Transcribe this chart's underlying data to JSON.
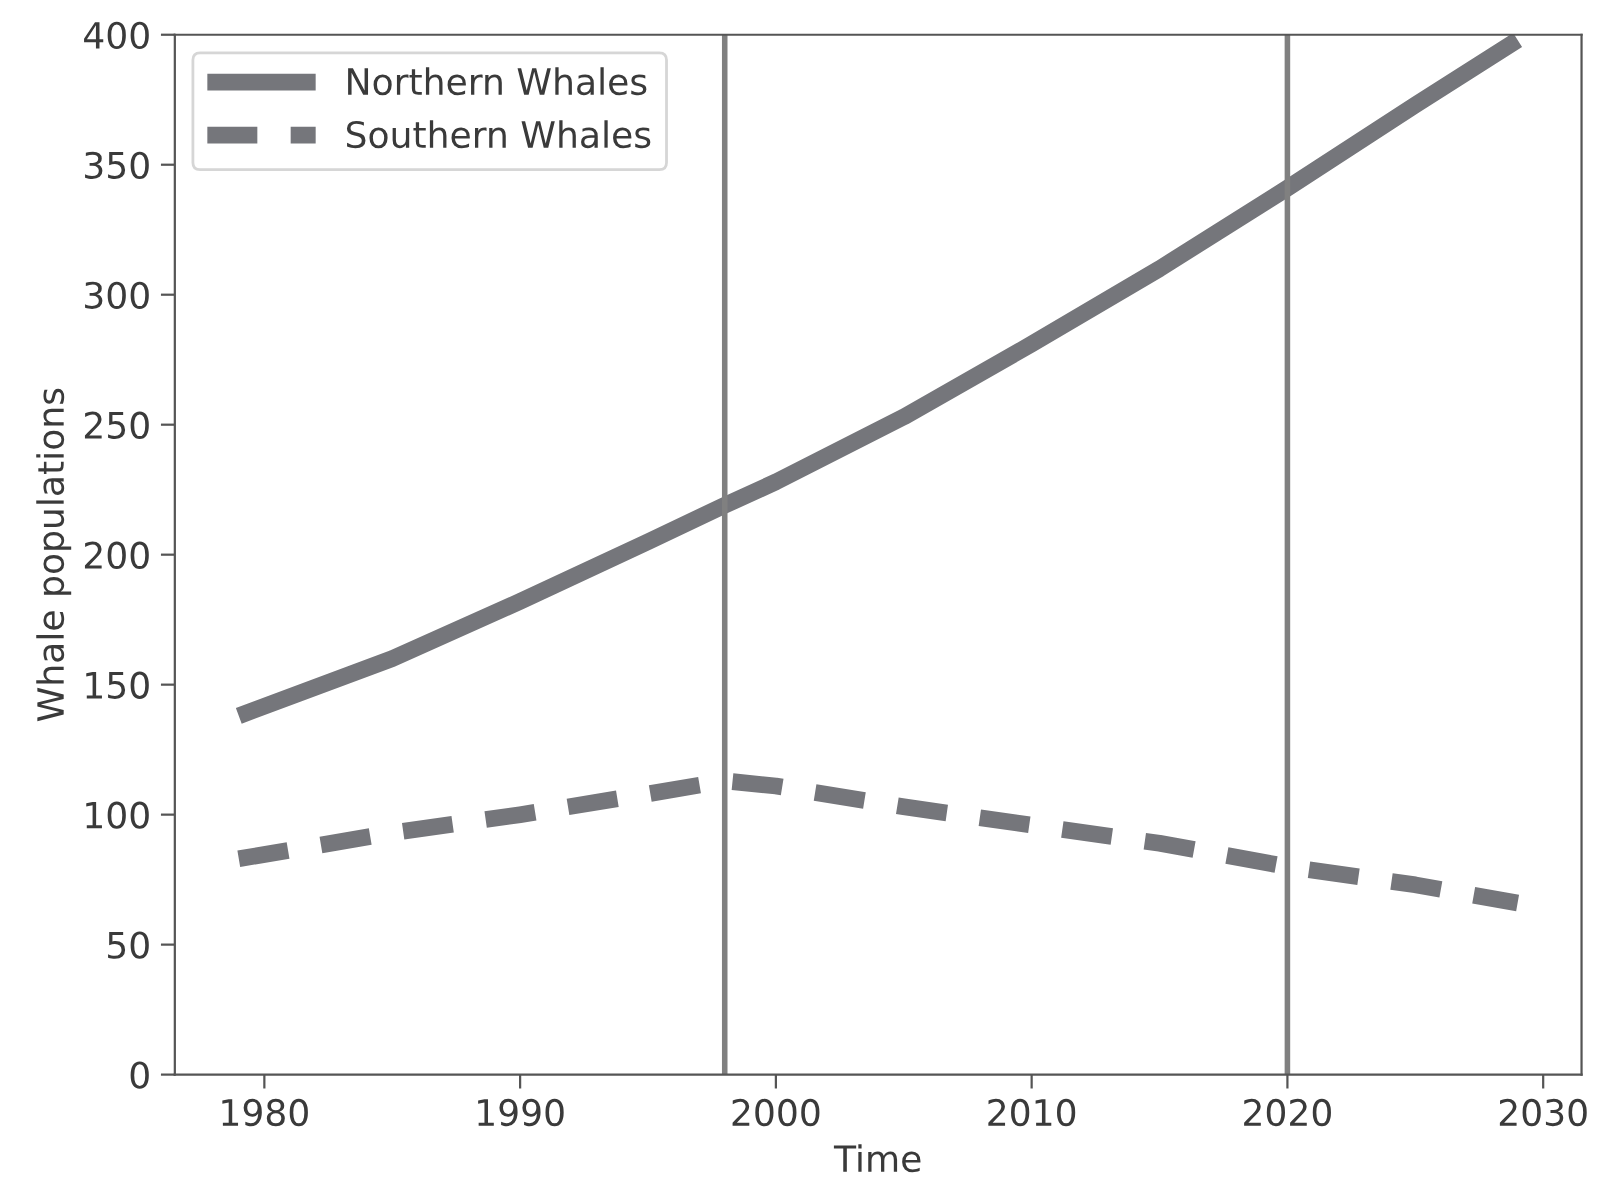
{
  "chart_data": {
    "type": "line",
    "xlabel": "Time",
    "ylabel": "Whale populations",
    "xlim": [
      1976.5,
      2031.5
    ],
    "xticks": [
      1980,
      1990,
      2000,
      2010,
      2020,
      2030
    ],
    "ylim": [
      0,
      400
    ],
    "yticks": [
      0,
      50,
      100,
      150,
      200,
      250,
      300,
      350,
      400
    ],
    "grid": false,
    "legend": "top left",
    "series": [
      {
        "name": "Northern Whales",
        "color": "#75767b",
        "line_style": "solid",
        "x": [
          1979,
          1985,
          1990,
          1995,
          1998,
          2000,
          2005,
          2010,
          2015,
          2020,
          2025,
          2029
        ],
        "values": [
          138,
          160,
          182,
          205,
          219,
          228,
          253,
          281,
          310,
          341,
          373,
          398
        ]
      },
      {
        "name": "Southern Whales",
        "color": "#75767b",
        "line_style": "dashed",
        "x": [
          1979,
          1985,
          1990,
          1995,
          1998,
          2000,
          2005,
          2010,
          2015,
          2020,
          2025,
          2029
        ],
        "values": [
          83,
          93,
          100,
          108,
          113,
          111,
          103,
          96,
          89,
          80,
          73,
          66
        ]
      }
    ],
    "ref_lines": [
      {
        "axis": "x",
        "value": 1998,
        "color": "#808080"
      },
      {
        "axis": "x",
        "value": 2020,
        "color": "#808080"
      }
    ]
  }
}
